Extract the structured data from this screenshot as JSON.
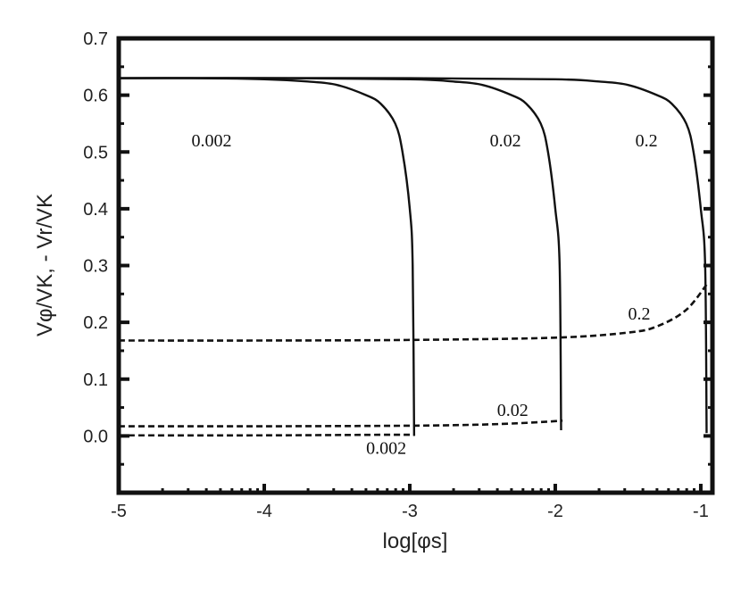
{
  "chart_data": {
    "type": "line",
    "xlabel": "log[φs]",
    "ylabel": "Vφ/VK, - Vr/VK",
    "xlim": [
      -5,
      -0.92
    ],
    "ylim": [
      -0.1,
      0.7
    ],
    "x_ticks": [
      "-5",
      "-4",
      "-3",
      "-2",
      "-1"
    ],
    "y_ticks": [
      "0.0",
      "0.1",
      "0.2",
      "0.3",
      "0.4",
      "0.5",
      "0.6",
      "0.7"
    ],
    "colors": {
      "line": "#111111",
      "frame": "#111111"
    },
    "series": [
      {
        "name": "0.002",
        "style": "solid",
        "x": [
          -5,
          -4.5,
          -4,
          -3.7,
          -3.5,
          -3.3,
          -3.2,
          -3.1,
          -3.05,
          -3.0,
          -2.98,
          -2.97
        ],
        "y": [
          0.63,
          0.63,
          0.628,
          0.624,
          0.618,
          0.6,
          0.585,
          0.55,
          0.5,
          0.4,
          0.3,
          0.0
        ]
      },
      {
        "name": "0.02",
        "style": "solid",
        "x": [
          -5,
          -4,
          -3,
          -2.7,
          -2.5,
          -2.3,
          -2.2,
          -2.1,
          -2.05,
          -2.0,
          -1.97,
          -1.96
        ],
        "y": [
          0.63,
          0.63,
          0.628,
          0.624,
          0.618,
          0.6,
          0.585,
          0.55,
          0.5,
          0.4,
          0.3,
          0.01
        ]
      },
      {
        "name": "0.2",
        "style": "solid",
        "x": [
          -5,
          -3,
          -2,
          -1.7,
          -1.5,
          -1.3,
          -1.2,
          -1.1,
          -1.05,
          -1.0,
          -0.97,
          -0.96
        ],
        "y": [
          0.63,
          0.63,
          0.628,
          0.624,
          0.618,
          0.6,
          0.585,
          0.55,
          0.5,
          0.4,
          0.3,
          0.005
        ]
      },
      {
        "name": "0.2",
        "style": "dashed",
        "x": [
          -5,
          -4,
          -3,
          -2,
          -1.5,
          -1.3,
          -1.1,
          -0.95
        ],
        "y": [
          0.168,
          0.168,
          0.169,
          0.173,
          0.182,
          0.193,
          0.222,
          0.27
        ]
      },
      {
        "name": "0.02",
        "style": "dashed",
        "x": [
          -5,
          -4,
          -3,
          -2.5,
          -2.2,
          -2.0,
          -1.95
        ],
        "y": [
          0.017,
          0.017,
          0.018,
          0.02,
          0.023,
          0.026,
          0.027
        ]
      },
      {
        "name": "0.002",
        "style": "dashed",
        "x": [
          -5,
          -4,
          -3.2,
          -3.0,
          -2.97
        ],
        "y": [
          0.001,
          0.001,
          0.002,
          0.002,
          0.002
        ]
      }
    ],
    "annotations": [
      {
        "text": "0.002",
        "x": -4.5,
        "y": 0.51
      },
      {
        "text": "0.02",
        "x": -2.45,
        "y": 0.51
      },
      {
        "text": "0.2",
        "x": -1.45,
        "y": 0.51
      },
      {
        "text": "0.2",
        "x": -1.5,
        "y": 0.205
      },
      {
        "text": "0.02",
        "x": -2.4,
        "y": 0.035
      },
      {
        "text": "0.002",
        "x": -3.3,
        "y": -0.032
      }
    ]
  }
}
